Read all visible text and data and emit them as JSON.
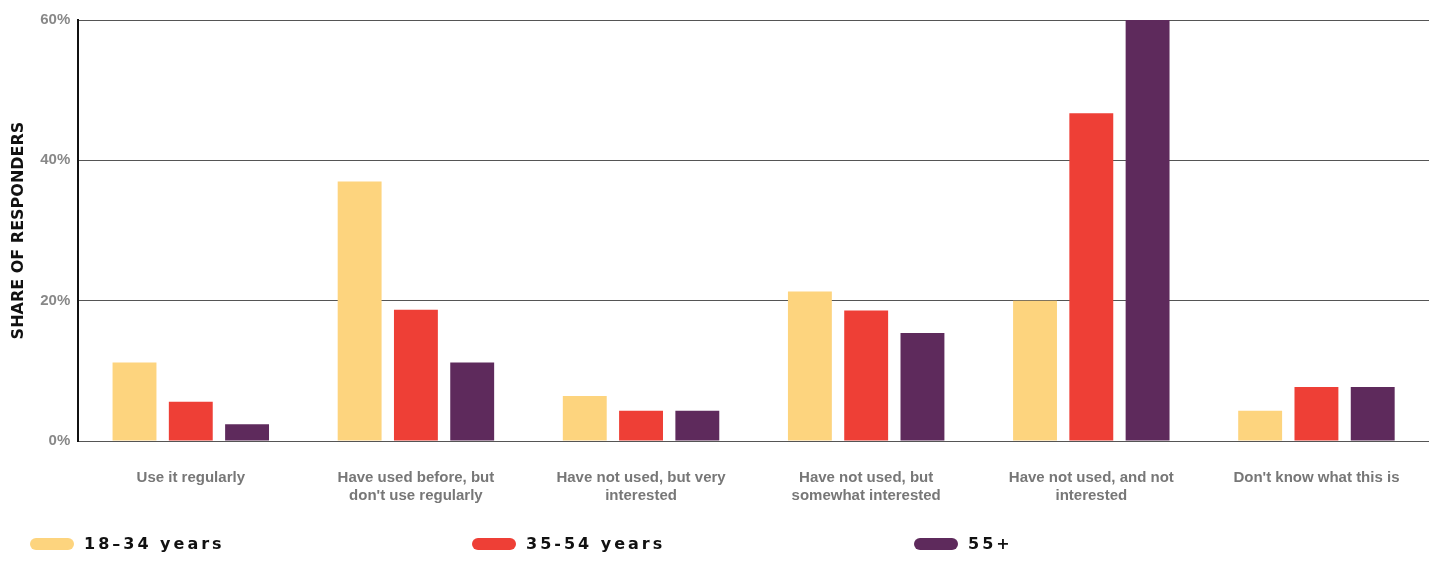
{
  "chart_data": {
    "type": "bar",
    "ylabel": "SHARE OF RESPONDERS",
    "categories": [
      "Use it regularly",
      "Have used before, but don't use regularly",
      "Have not used, but very interested",
      "Have not used, but somewhat interested",
      "Have not used, and not interested",
      "Don't know what this is"
    ],
    "series": [
      {
        "name": "18–34 years",
        "color": "#fdd47e",
        "values": [
          11.2,
          37,
          6.4,
          21.3,
          20,
          4.3
        ]
      },
      {
        "name": "35-54 years",
        "color": "#ee3f36",
        "values": [
          5.6,
          18.7,
          4.3,
          18.6,
          46.7,
          7.7
        ]
      },
      {
        "name": "55+",
        "color": "#5e2a5c",
        "values": [
          2.4,
          11.2,
          4.3,
          15.4,
          60,
          7.7
        ]
      }
    ],
    "ylim": [
      0,
      60
    ],
    "yticks": [
      {
        "value": 0,
        "label": "0%"
      },
      {
        "value": 20,
        "label": "20%"
      },
      {
        "value": 40,
        "label": "40%"
      },
      {
        "value": 60,
        "label": "60%"
      }
    ],
    "grid": "y",
    "legend": "bottom"
  }
}
